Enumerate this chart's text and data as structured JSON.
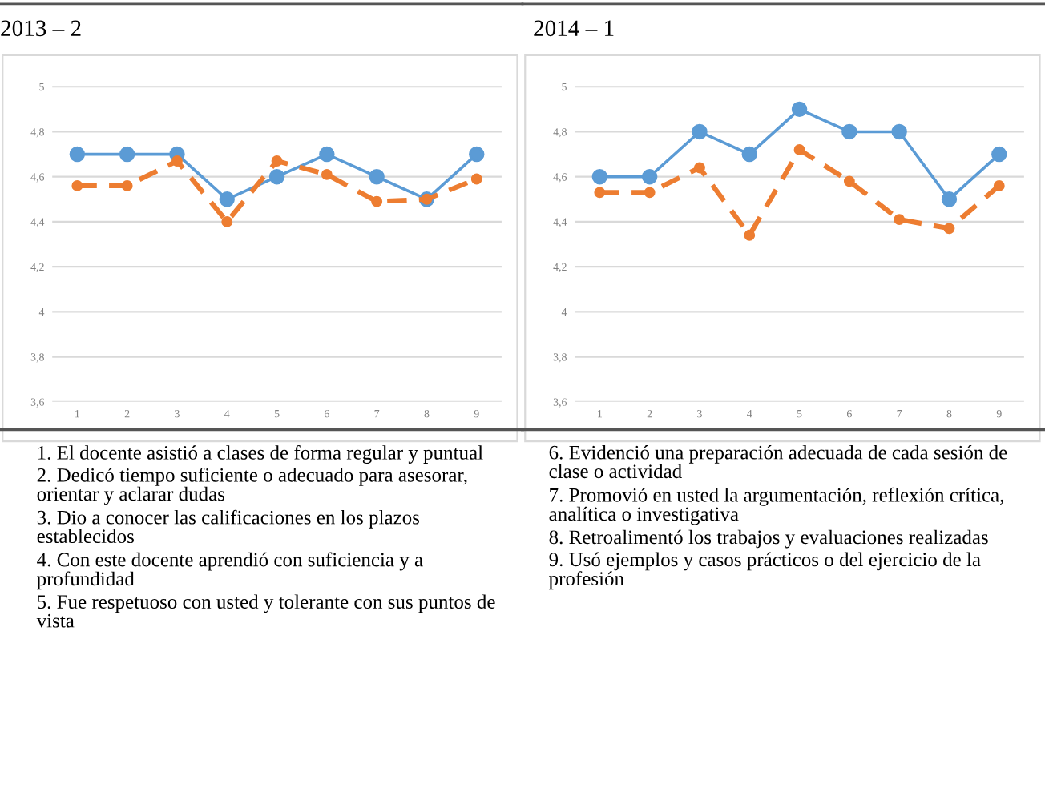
{
  "chart_data": [
    {
      "type": "line",
      "title": "2013 – 2",
      "categories": [
        "1",
        "2",
        "3",
        "4",
        "5",
        "6",
        "7",
        "8",
        "9"
      ],
      "series": [
        {
          "color": "#5b9bd5",
          "line_style": "solid",
          "values": [
            4.7,
            4.7,
            4.7,
            4.5,
            4.6,
            4.7,
            4.6,
            4.5,
            4.7
          ]
        },
        {
          "color": "#ed7d31",
          "line_style": "dashed",
          "values": [
            4.56,
            4.56,
            4.67,
            4.4,
            4.67,
            4.61,
            4.49,
            4.5,
            4.59
          ]
        }
      ],
      "ylim": [
        3.6,
        5
      ],
      "yticks": [
        {
          "value": 3.6,
          "label": "3,6"
        },
        {
          "value": 3.8,
          "label": "3,8"
        },
        4,
        {
          "value": 4.2,
          "label": "4,2"
        },
        {
          "value": 4.4,
          "label": "4,4"
        },
        {
          "value": 4.6,
          "label": "4,6"
        },
        {
          "value": 4.8,
          "label": "4,8"
        },
        5
      ],
      "grid": "y",
      "marker": "circle",
      "annotations": [
        "1. El docente asistió a clases de forma regular y puntual",
        "2. Dedicó tiempo suficiente o adecuado para asesorar, orientar y aclarar dudas",
        "3. Dio a conocer las calificaciones en los plazos establecidos",
        "4. Con este docente aprendió con suficiencia y a profundidad",
        "5. Fue respetuoso con usted y tolerante con sus puntos de vista"
      ]
    },
    {
      "type": "line",
      "title": "2014 – 1",
      "categories": [
        "1",
        "2",
        "3",
        "4",
        "5",
        "6",
        "7",
        "8",
        "9"
      ],
      "series": [
        {
          "color": "#5b9bd5",
          "line_style": "solid",
          "values": [
            4.6,
            4.6,
            4.8,
            4.7,
            4.9,
            4.8,
            4.8,
            4.5,
            4.7
          ]
        },
        {
          "color": "#ed7d31",
          "line_style": "dashed",
          "values": [
            4.53,
            4.53,
            4.64,
            4.34,
            4.72,
            4.58,
            4.41,
            4.37,
            4.56
          ]
        }
      ],
      "ylim": [
        3.6,
        5
      ],
      "yticks": [
        {
          "value": 3.6,
          "label": "3,6"
        },
        {
          "value": 3.8,
          "label": "3,8"
        },
        4,
        {
          "value": 4.2,
          "label": "4,2"
        },
        {
          "value": 4.4,
          "label": "4,4"
        },
        {
          "value": 4.6,
          "label": "4,6"
        },
        {
          "value": 4.8,
          "label": "4,8"
        },
        5
      ],
      "grid": "y",
      "marker": "circle",
      "annotations": [
        "6. Evidenció una preparación adecuada de cada sesión de clase o actividad",
        "7. Promovió en usted la argumentación, reflexión crítica, analítica o investigativa",
        "8. Retroalimentó los trabajos y evaluaciones realizadas",
        "9. Usó ejemplos y casos prácticos o del ejercicio de la profesión"
      ]
    }
  ]
}
